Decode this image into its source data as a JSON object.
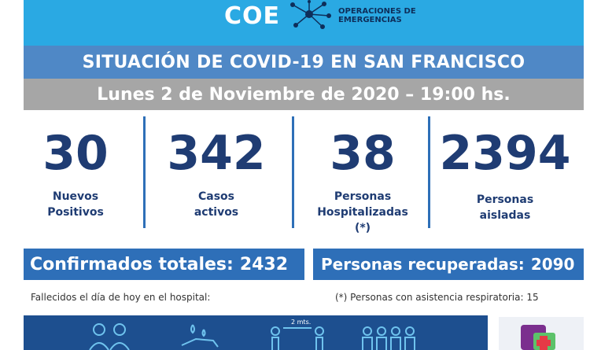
{
  "header": {
    "logo_text": "COE",
    "org_line1": "OPERACIONES DE",
    "org_line2": "EMERGENCIAS",
    "colors": {
      "band": "#2aa9e3",
      "title_band": "#4f88c6",
      "date_band": "#a6a6a6",
      "accent": "#2e6fb8",
      "text_dark": "#1f3c73"
    }
  },
  "title": "SITUACIÓN DE COVID-19 EN SAN FRANCISCO",
  "date": "Lunes 2 de Noviembre de 2020 – 19:00 hs.",
  "stats": [
    {
      "value": "30",
      "label_1": "Nuevos",
      "label_2": "Positivos",
      "label_3": ""
    },
    {
      "value": "342",
      "label_1": "Casos",
      "label_2": "activos",
      "label_3": ""
    },
    {
      "value": "38",
      "label_1": "Personas",
      "label_2": "Hospitalizadas",
      "label_3": "(*)"
    },
    {
      "value": "2394",
      "label_1": "Personas",
      "label_2": "aisladas",
      "label_3": ""
    }
  ],
  "totals": {
    "confirmed_label": "Confirmados totales:",
    "confirmed_value": "2432",
    "recovered_label": "Personas recuperadas:",
    "recovered_value": "2090"
  },
  "notes": {
    "deaths": "Fallecidos el día de hoy en el hospital:",
    "respiratory": "(*) Personas con asistencia respiratoria: 15"
  },
  "bottom": {
    "distance_label": "2 mts."
  },
  "icons": [
    "network-icon",
    "masked-people-icon",
    "hand-washing-icon",
    "distance-icon",
    "crowd-icon",
    "health-logo-icon"
  ]
}
